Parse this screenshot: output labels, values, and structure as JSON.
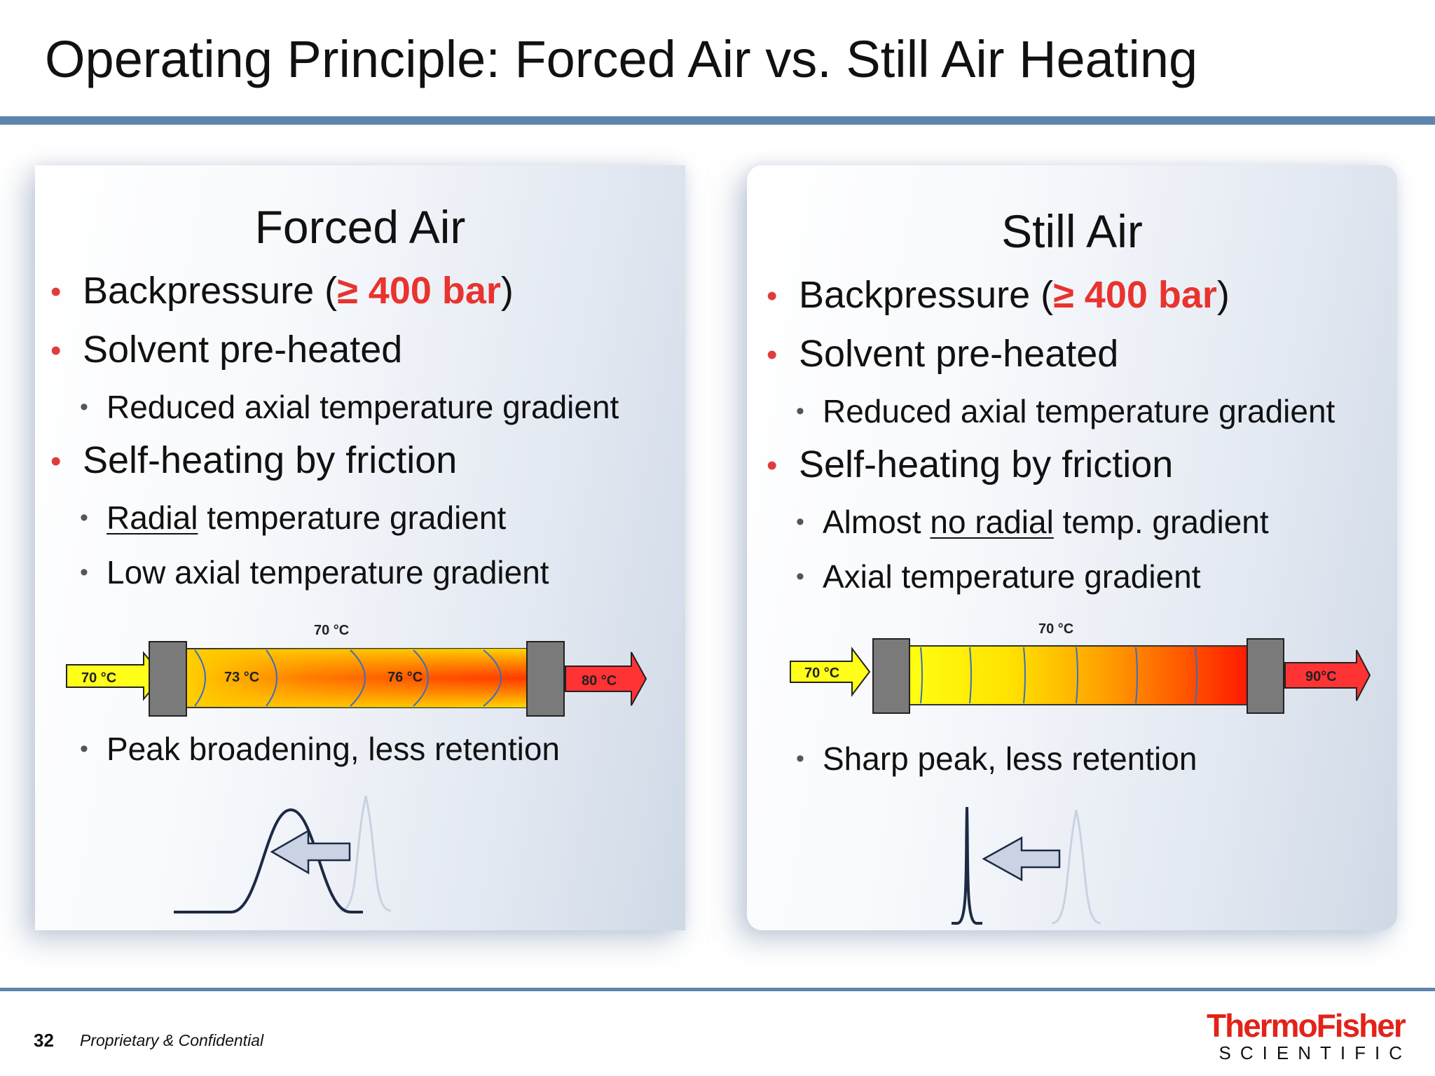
{
  "title": "Operating Principle: Forced Air vs. Still Air Heating",
  "forced": {
    "heading": "Forced Air",
    "backpressure_pre": "Backpressure (",
    "backpressure_val": "≥ 400 bar",
    "backpressure_post": ")",
    "solvent": "Solvent pre-heated",
    "axial_reduced": "Reduced axial temperature gradient",
    "self_heating": "Self-heating by friction",
    "radial_u": "Radial",
    "radial_rest": " temperature gradient",
    "low_axial": "Low axial temperature gradient",
    "temp_in": "70 °C",
    "temp_top": "70 °C",
    "temp_mid1": "73 °C",
    "temp_mid2": "76 °C",
    "temp_out": "80 °C",
    "result": "Peak broadening, less retention"
  },
  "still": {
    "heading": "Still Air",
    "backpressure_pre": "Backpressure (",
    "backpressure_val": "≥ 400 bar",
    "backpressure_post": ")",
    "solvent": "Solvent pre-heated",
    "axial_reduced": "Reduced axial temperature gradient",
    "self_heating": "Self-heating by friction",
    "radial_pre": "Almost ",
    "radial_u": "no radial",
    "radial_post": " temp. gradient",
    "axial": "Axial temperature gradient",
    "temp_in": "70 °C",
    "temp_top": "70 °C",
    "temp_out": "90°C",
    "result": "Sharp peak, less retention"
  },
  "footer": {
    "page": "32",
    "confidential": "Proprietary & Confidential",
    "logo_main": "ThermoFisher",
    "logo_sub": "SCIENTIFIC"
  },
  "colors": {
    "accent_rule": "#5f85ae",
    "bullet_red": "#e03c3c",
    "hot": "#ff2a00",
    "warm": "#ffd000"
  }
}
